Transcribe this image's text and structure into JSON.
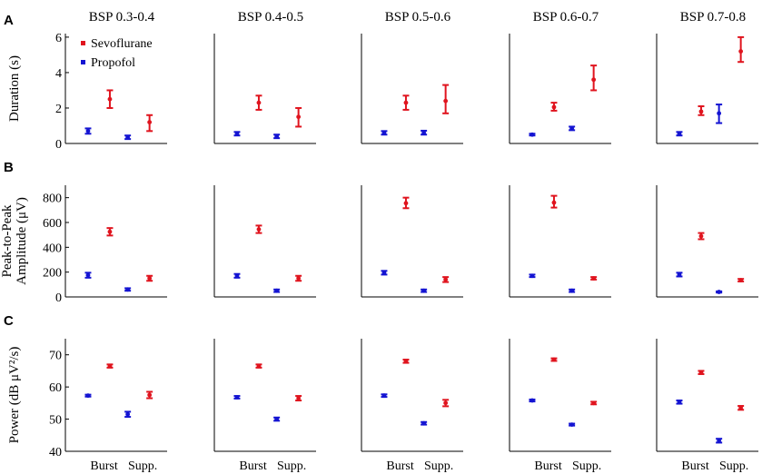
{
  "chart_data": {
    "type": "errorbar",
    "columns": [
      "BSP 0.3-0.4",
      "BSP 0.4-0.5",
      "BSP 0.5-0.6",
      "BSP 0.6-0.7",
      "BSP 0.7-0.8"
    ],
    "x_ticks": [
      "Burst",
      "Supp."
    ],
    "legend": [
      {
        "name": "Sevoflurane",
        "color": "#e0141e"
      },
      {
        "name": "Propofol",
        "color": "#1414d2"
      }
    ],
    "legend_position": "top-left of first panel",
    "rows": [
      {
        "letter": "A",
        "ylabel_lines": [
          "Duration (s)"
        ],
        "ylim": [
          0,
          6.2
        ],
        "yticks": [
          0,
          2,
          4,
          6
        ],
        "series": [
          {
            "name": "Sevoflurane",
            "color": "#e0141e",
            "points": [
              {
                "burst": [
                  2.5,
                  2.0,
                  3.0
                ],
                "supp": [
                  1.2,
                  0.7,
                  1.6
                ]
              },
              {
                "burst": [
                  2.3,
                  1.9,
                  2.7
                ],
                "supp": [
                  1.5,
                  0.95,
                  2.0
                ]
              },
              {
                "burst": [
                  2.3,
                  1.9,
                  2.7
                ],
                "supp": [
                  2.4,
                  1.7,
                  3.3
                ]
              },
              {
                "burst": [
                  2.05,
                  1.85,
                  2.3
                ],
                "supp": [
                  3.6,
                  3.0,
                  4.4
                ]
              },
              {
                "burst": [
                  1.8,
                  1.6,
                  2.1
                ],
                "supp": [
                  5.2,
                  4.6,
                  6.0
                ]
              }
            ]
          },
          {
            "name": "Propofol",
            "color": "#1414d2",
            "points": [
              {
                "burst": [
                  0.7,
                  0.55,
                  0.85
                ],
                "supp": [
                  0.35,
                  0.25,
                  0.45
                ]
              },
              {
                "burst": [
                  0.55,
                  0.45,
                  0.65
                ],
                "supp": [
                  0.4,
                  0.3,
                  0.5
                ]
              },
              {
                "burst": [
                  0.6,
                  0.5,
                  0.7
                ],
                "supp": [
                  0.6,
                  0.5,
                  0.72
                ]
              },
              {
                "burst": [
                  0.5,
                  0.45,
                  0.55
                ],
                "supp": [
                  0.85,
                  0.75,
                  0.95
                ]
              },
              {
                "burst": [
                  0.55,
                  0.45,
                  0.65
                ],
                "supp": [
                  1.7,
                  1.15,
                  2.2
                ]
              }
            ]
          }
        ]
      },
      {
        "letter": "B",
        "ylabel_lines": [
          "Peak-to-Peak",
          "Amplitude (μV)"
        ],
        "ylim": [
          0,
          900
        ],
        "yticks": [
          0,
          200,
          400,
          600,
          800
        ],
        "series": [
          {
            "name": "Sevoflurane",
            "color": "#e0141e",
            "points": [
              {
                "burst": [
                  525,
                  495,
                  555
                ],
                "supp": [
                  150,
                  130,
                  170
                ]
              },
              {
                "burst": [
                  545,
                  515,
                  575
                ],
                "supp": [
                  150,
                  130,
                  170
                ]
              },
              {
                "burst": [
                  755,
                  715,
                  800
                ],
                "supp": [
                  140,
                  120,
                  160
                ]
              },
              {
                "burst": [
                  760,
                  720,
                  815
                ],
                "supp": [
                  150,
                  140,
                  160
                ]
              },
              {
                "burst": [
                  490,
                  465,
                  515
                ],
                "supp": [
                  135,
                  125,
                  145
                ]
              }
            ]
          },
          {
            "name": "Propofol",
            "color": "#1414d2",
            "points": [
              {
                "burst": [
                  175,
                  155,
                  195
                ],
                "supp": [
                  60,
                  50,
                  70
                ]
              },
              {
                "burst": [
                  170,
                  155,
                  185
                ],
                "supp": [
                  50,
                  40,
                  60
                ]
              },
              {
                "burst": [
                  195,
                  180,
                  210
                ],
                "supp": [
                  50,
                  40,
                  60
                ]
              },
              {
                "burst": [
                  170,
                  160,
                  180
                ],
                "supp": [
                  50,
                  40,
                  60
                ]
              },
              {
                "burst": [
                  180,
                  165,
                  195
                ],
                "supp": [
                  40,
                  35,
                  45
                ]
              }
            ]
          }
        ]
      },
      {
        "letter": "C",
        "ylabel_lines": [
          "Power (dB μV²/s)"
        ],
        "ylim": [
          40,
          75
        ],
        "yticks": [
          40,
          50,
          60,
          70
        ],
        "series": [
          {
            "name": "Sevoflurane",
            "color": "#e0141e",
            "points": [
              {
                "burst": [
                  66.5,
                  66.0,
                  67.0
                ],
                "supp": [
                  57.5,
                  56.5,
                  58.5
                ]
              },
              {
                "burst": [
                  66.5,
                  66.0,
                  67.0
                ],
                "supp": [
                  56.5,
                  55.8,
                  57.2
                ]
              },
              {
                "burst": [
                  68.0,
                  67.5,
                  68.5
                ],
                "supp": [
                  55.0,
                  54.0,
                  56.0
                ]
              },
              {
                "burst": [
                  68.5,
                  68.1,
                  68.9
                ],
                "supp": [
                  55.0,
                  54.6,
                  55.4
                ]
              },
              {
                "burst": [
                  64.5,
                  64.0,
                  65.0
                ],
                "supp": [
                  53.5,
                  52.9,
                  54.1
                ]
              }
            ]
          },
          {
            "name": "Propofol",
            "color": "#1414d2",
            "points": [
              {
                "burst": [
                  57.3,
                  57.0,
                  57.6
                ],
                "supp": [
                  51.5,
                  50.7,
                  52.3
                ]
              },
              {
                "burst": [
                  56.8,
                  56.4,
                  57.2
                ],
                "supp": [
                  50.0,
                  49.5,
                  50.5
                ]
              },
              {
                "burst": [
                  57.3,
                  56.9,
                  57.7
                ],
                "supp": [
                  48.7,
                  48.3,
                  49.1
                ]
              },
              {
                "burst": [
                  55.8,
                  55.5,
                  56.1
                ],
                "supp": [
                  48.3,
                  48.0,
                  48.6
                ]
              },
              {
                "burst": [
                  55.3,
                  54.8,
                  55.8
                ],
                "supp": [
                  43.3,
                  42.7,
                  43.9
                ]
              }
            ]
          }
        ]
      }
    ]
  }
}
